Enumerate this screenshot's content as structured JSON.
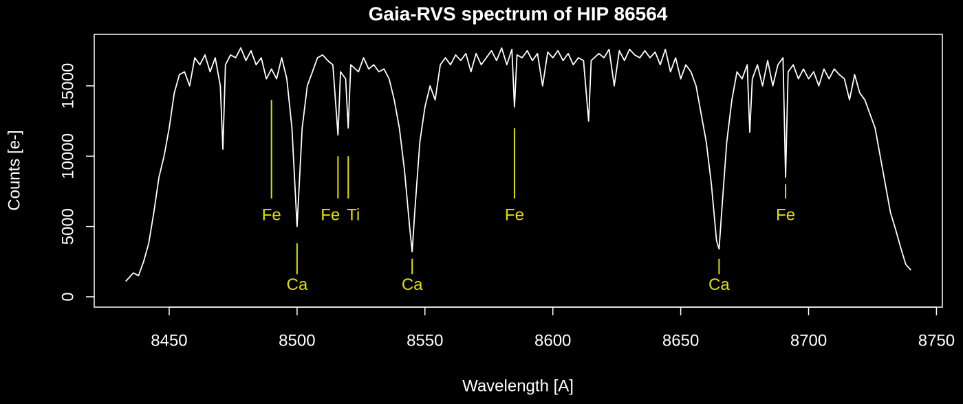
{
  "chart_data": {
    "type": "line",
    "title": "Gaia-RVS spectrum of HIP 86564",
    "x_label": "Wavelength [A]",
    "y_label": "Counts [e-]",
    "xlim": [
      8420.7,
      8752.3
    ],
    "ylim": [
      -733,
      18663
    ],
    "xticks": [
      8450,
      8500,
      8550,
      8600,
      8650,
      8700,
      8750
    ],
    "yticks": [
      0,
      5000,
      10000,
      15000
    ],
    "series": [
      {
        "name": "spectrum",
        "color": "#ffffff",
        "x": [
          8433,
          8436,
          8438,
          8440,
          8442,
          8444,
          8446,
          8448,
          8450,
          8452,
          8454,
          8456,
          8458,
          8460,
          8462,
          8464,
          8466,
          8468,
          8470,
          8471,
          8472,
          8474,
          8476,
          8478,
          8480,
          8482,
          8484,
          8486,
          8488,
          8490,
          8492,
          8494,
          8496,
          8498,
          8500,
          8502,
          8504,
          8506,
          8508,
          8510,
          8512,
          8514,
          8516,
          8517,
          8519,
          8520,
          8521,
          8524,
          8526,
          8528,
          8530,
          8532,
          8534,
          8536,
          8538,
          8540,
          8542,
          8544,
          8545,
          8546,
          8548,
          8550,
          8552,
          8554,
          8556,
          8558,
          8560,
          8562,
          8564,
          8566,
          8568,
          8570,
          8572,
          8574,
          8576,
          8578,
          8580,
          8582,
          8584,
          8585,
          8586,
          8588,
          8590,
          8592,
          8594,
          8596,
          8598,
          8600,
          8602,
          8604,
          8606,
          8608,
          8610,
          8612,
          8614,
          8615,
          8618,
          8620,
          8622,
          8624,
          8626,
          8628,
          8630,
          8632,
          8634,
          8636,
          8638,
          8640,
          8642,
          8644,
          8646,
          8648,
          8650,
          8652,
          8654,
          8656,
          8658,
          8660,
          8662,
          8664,
          8665,
          8666,
          8668,
          8670,
          8672,
          8674,
          8676,
          8677,
          8678,
          8680,
          8682,
          8684,
          8686,
          8688,
          8690,
          8691,
          8692,
          8694,
          8696,
          8698,
          8700,
          8702,
          8704,
          8706,
          8708,
          8710,
          8712,
          8714,
          8716,
          8718,
          8720,
          8722,
          8724,
          8726,
          8728,
          8730,
          8732,
          8734,
          8736,
          8738,
          8740
        ],
        "values": [
          1100,
          1700,
          1500,
          2500,
          3800,
          6000,
          8500,
          10000,
          12000,
          14500,
          15800,
          16000,
          15000,
          17000,
          16500,
          17200,
          16000,
          17000,
          15000,
          10500,
          16500,
          17200,
          17000,
          17700,
          16800,
          17500,
          16500,
          17000,
          15500,
          16200,
          15500,
          17000,
          15500,
          12000,
          5000,
          12000,
          15000,
          16000,
          17000,
          17200,
          16800,
          16500,
          11500,
          16000,
          15500,
          12000,
          16500,
          16000,
          17000,
          16200,
          16500,
          16000,
          16200,
          15500,
          14000,
          12000,
          9000,
          5000,
          3200,
          6000,
          11000,
          13500,
          15000,
          14000,
          16500,
          17000,
          16500,
          17200,
          16800,
          17300,
          16000,
          17300,
          16500,
          17000,
          17500,
          16800,
          17700,
          16500,
          17600,
          13500,
          17200,
          17000,
          17500,
          16800,
          17300,
          15000,
          17400,
          17000,
          17500,
          16800,
          17300,
          16500,
          17000,
          16800,
          12500,
          16800,
          17300,
          17000,
          17600,
          15000,
          17500,
          16800,
          17600,
          17200,
          17000,
          17500,
          17000,
          17400,
          16500,
          17600,
          16000,
          17000,
          15500,
          16500,
          16000,
          15000,
          13000,
          11000,
          8000,
          4000,
          3400,
          6000,
          11000,
          14000,
          16000,
          15500,
          16500,
          11700,
          15500,
          16500,
          15000,
          16800,
          15000,
          16500,
          17000,
          8500,
          16000,
          16500,
          15500,
          16200,
          15500,
          16000,
          15000,
          16200,
          15500,
          16200,
          15800,
          15500,
          14000,
          15800,
          14500,
          14000,
          13000,
          12000,
          10000,
          8000,
          6000,
          4800,
          3500,
          2300,
          1900
        ]
      }
    ],
    "annotation_color": "#e0e000",
    "annotations": [
      {
        "label": "Fe",
        "x": 8490,
        "y0": 7000,
        "y1": 14000,
        "label_x": 8490,
        "label_y": 5750
      },
      {
        "label": "Ca",
        "x": 8500,
        "y0": 1600,
        "y1": 3800,
        "label_x": 8500,
        "label_y": 800
      },
      {
        "label": "Fe",
        "x": 8516,
        "y0": 7000,
        "y1": 10000,
        "label_x": 8513,
        "label_y": 5750
      },
      {
        "label": "Ti",
        "x": 8520,
        "y0": 7000,
        "y1": 10000,
        "label_x": 8522,
        "label_y": 5750
      },
      {
        "label": "Ca",
        "x": 8545,
        "y0": 1600,
        "y1": 2700,
        "label_x": 8545,
        "label_y": 800
      },
      {
        "label": "Fe",
        "x": 8585,
        "y0": 7000,
        "y1": 12000,
        "label_x": 8585,
        "label_y": 5750
      },
      {
        "label": "Ca",
        "x": 8665,
        "y0": 1600,
        "y1": 2700,
        "label_x": 8665,
        "label_y": 800
      },
      {
        "label": "Fe",
        "x": 8691,
        "y0": 7000,
        "y1": 8000,
        "label_x": 8691,
        "label_y": 5750
      }
    ]
  }
}
